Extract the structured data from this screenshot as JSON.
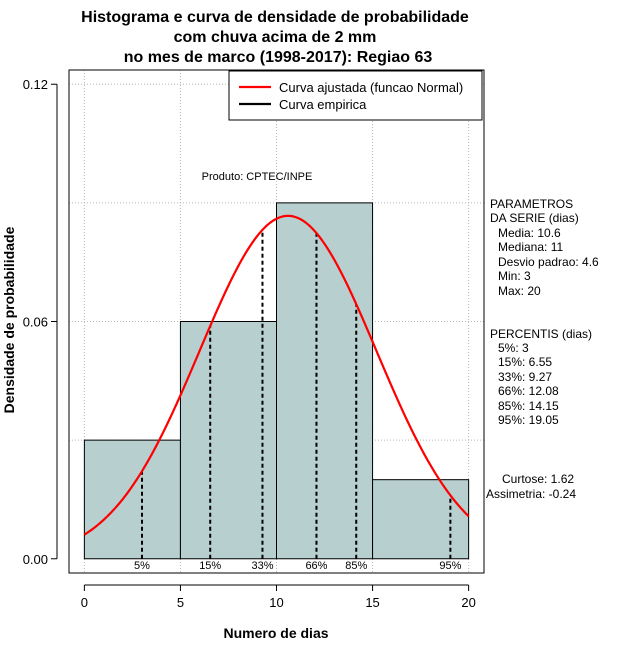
{
  "chart_data": {
    "type": "bar",
    "title_lines": [
      "Histograma e curva de densidade de probabilidade",
      "com chuva acima de 2 mm",
      "no mes de marco (1998-2017): Regiao 63"
    ],
    "xlabel": "Numero de dias",
    "ylabel": "Densidade de probabilidade",
    "xlim": [
      -0.8,
      20.8
    ],
    "ylim": [
      -0.0036,
      0.1236
    ],
    "x_ticks": [
      0,
      5,
      10,
      15,
      20
    ],
    "x_tick_labels": [
      "0",
      "5",
      "10",
      "15",
      "20"
    ],
    "y_ticks": [
      0.0,
      0.06,
      0.12
    ],
    "y_tick_labels": [
      "0.00",
      "0.06",
      "0.12"
    ],
    "grid": true,
    "histogram": {
      "bins": [
        {
          "from": 0,
          "to": 5,
          "density": 0.03
        },
        {
          "from": 5,
          "to": 10,
          "density": 0.06
        },
        {
          "from": 10,
          "to": 15,
          "density": 0.09
        },
        {
          "from": 15,
          "to": 20,
          "density": 0.02
        }
      ],
      "fill_color": "#b7cfcf"
    },
    "fitted_curve": {
      "name": "Curva ajustada (funcao Normal)",
      "mean": 10.6,
      "sd": 4.6,
      "x_range": [
        0,
        20
      ],
      "color": "#ff0000"
    },
    "empirical_curve": {
      "name": "Curva empirica",
      "color": "#000000"
    },
    "percentile_lines": [
      {
        "label": "5%",
        "x": 3
      },
      {
        "label": "15%",
        "x": 6.55
      },
      {
        "label": "33%",
        "x": 9.27
      },
      {
        "label": "66%",
        "x": 12.08
      },
      {
        "label": "85%",
        "x": 14.15
      },
      {
        "label": "95%",
        "x": 19.05
      }
    ],
    "annotation": "Produto: CPTEC/INPE",
    "legend": {
      "position": "top-right",
      "entries": [
        "Curva ajustada (funcao Normal)",
        "Curva empirica"
      ]
    }
  },
  "side_panel": {
    "params_title": [
      "PARAMETROS",
      "DA SERIE (dias)"
    ],
    "params": [
      "Media: 10.6",
      "Mediana: 11",
      "Desvio padrao: 4.6",
      "Min: 3",
      "Max: 20"
    ],
    "percentis_title": "PERCENTIS (dias)",
    "percentis": [
      "5%: 3",
      "15%: 6.55",
      "33%: 9.27",
      "66%: 12.08",
      "85%: 14.15",
      "95%: 19.05"
    ],
    "curtose": "Curtose: 1.62",
    "assimetria": "Assimetria: -0.24"
  }
}
